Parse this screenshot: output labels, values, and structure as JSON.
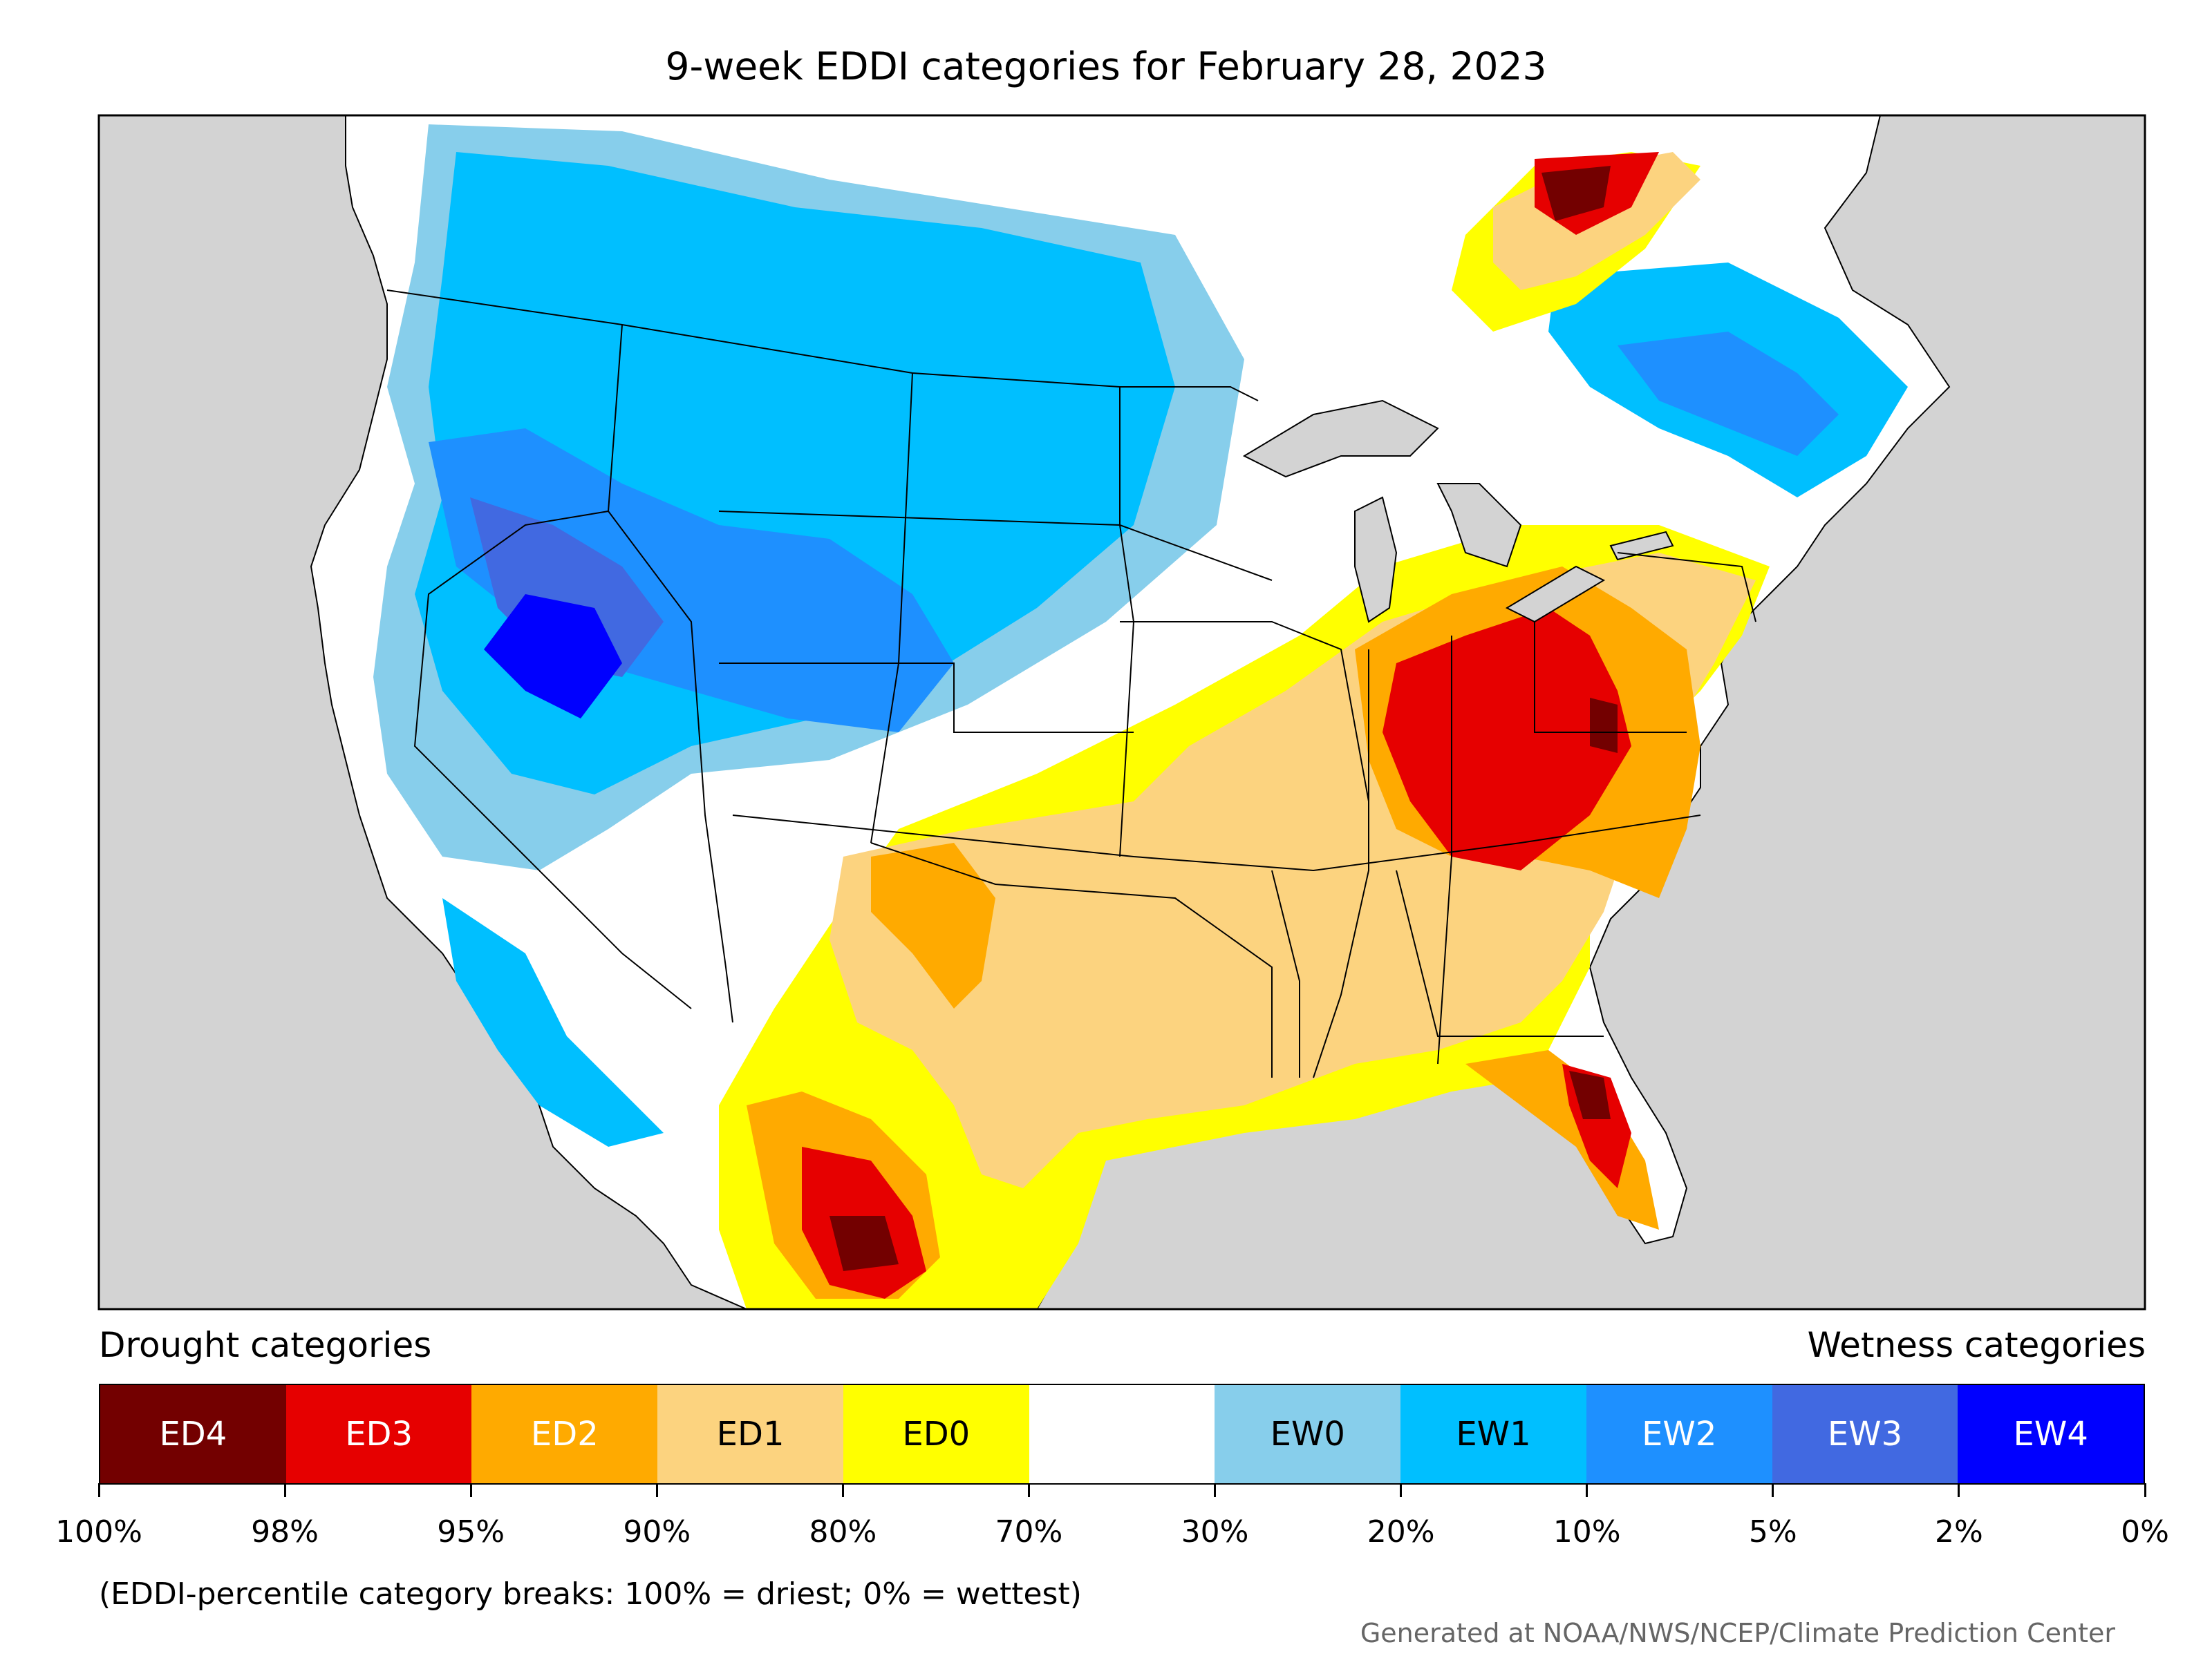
{
  "title": "9-week EDDI categories for February 28, 2023",
  "legend": {
    "drought_heading": "Drought categories",
    "wetness_heading": "Wetness categories",
    "categories": [
      {
        "label": "ED4",
        "color": "#730000",
        "text_color": "#ffffff"
      },
      {
        "label": "ED3",
        "color": "#e60000",
        "text_color": "#ffffff"
      },
      {
        "label": "ED2",
        "color": "#ffaa00",
        "text_color": "#ffffff"
      },
      {
        "label": "ED1",
        "color": "#fcd37f",
        "text_color": "#000000"
      },
      {
        "label": "ED0",
        "color": "#ffff00",
        "text_color": "#000000"
      },
      {
        "label": "",
        "color": "#ffffff",
        "text_color": "#000000"
      },
      {
        "label": "EW0",
        "color": "#87ceeb",
        "text_color": "#000000"
      },
      {
        "label": "EW1",
        "color": "#00bfff",
        "text_color": "#000000"
      },
      {
        "label": "EW2",
        "color": "#1e90ff",
        "text_color": "#ffffff"
      },
      {
        "label": "EW3",
        "color": "#4169e1",
        "text_color": "#ffffff"
      },
      {
        "label": "EW4",
        "color": "#0000ff",
        "text_color": "#ffffff"
      }
    ],
    "ticks": [
      "100%",
      "98%",
      "95%",
      "90%",
      "80%",
      "70%",
      "30%",
      "20%",
      "10%",
      "5%",
      "2%",
      "0%"
    ]
  },
  "note": "(EDDI-percentile category breaks: 100% = driest; 0% = wettest)",
  "credit": "Generated at NOAA/NWS/NCEP/Climate Prediction Center",
  "colors": {
    "ocean": "#d3d3d3",
    "land_blank": "#ffffff",
    "borders": "#000000"
  }
}
